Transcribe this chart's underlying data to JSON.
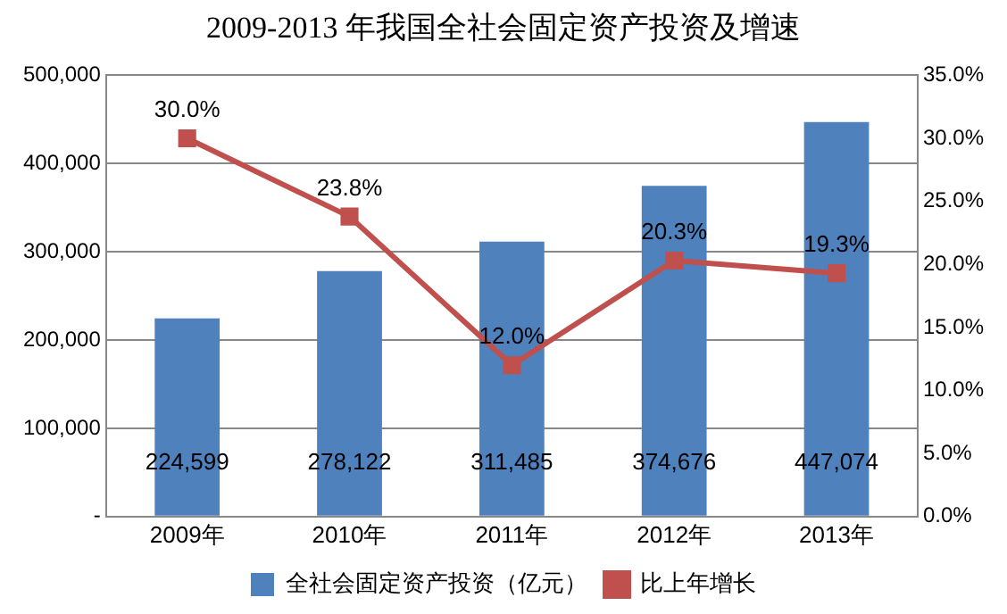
{
  "chart_data": {
    "type": "bar",
    "title": "2009-2013 年我国全社会固定资产投资及增速",
    "categories": [
      "2009年",
      "2010年",
      "2011年",
      "2012年",
      "2013年"
    ],
    "series": [
      {
        "name": "全社会固定资产投资（亿元）",
        "color": "#4f81bd",
        "values": [
          224599,
          278122,
          311485,
          374676,
          447074
        ],
        "value_labels": [
          "224,599",
          "278,122",
          "311,485",
          "374,676",
          "447,074"
        ]
      },
      {
        "name": "比上年增长",
        "type": "line",
        "axis": "y2",
        "color": "#c0504d",
        "marker": "square",
        "values": [
          30.0,
          23.8,
          12.0,
          20.3,
          19.3
        ],
        "value_labels": [
          "30.0%",
          "23.8%",
          "12.0%",
          "20.3%",
          "19.3%"
        ]
      }
    ],
    "ylim": [
      0,
      500000
    ],
    "yticks": [
      {
        "value": 0,
        "label": "-"
      },
      {
        "value": 100000,
        "label": "100,000"
      },
      {
        "value": 200000,
        "label": "200,000"
      },
      {
        "value": 300000,
        "label": "300,000"
      },
      {
        "value": 400000,
        "label": "400,000"
      },
      {
        "value": 500000,
        "label": "500,000"
      }
    ],
    "y2lim": [
      0,
      35
    ],
    "y2ticks": [
      {
        "value": 0,
        "label": "0.0%"
      },
      {
        "value": 5,
        "label": "5.0%"
      },
      {
        "value": 10,
        "label": "10.0%"
      },
      {
        "value": 15,
        "label": "15.0%"
      },
      {
        "value": 20,
        "label": "20.0%"
      },
      {
        "value": 25,
        "label": "25.0%"
      },
      {
        "value": 30,
        "label": "30.0%"
      },
      {
        "value": 35,
        "label": "35.0%"
      }
    ],
    "grid": "y",
    "legend": "bottom"
  }
}
